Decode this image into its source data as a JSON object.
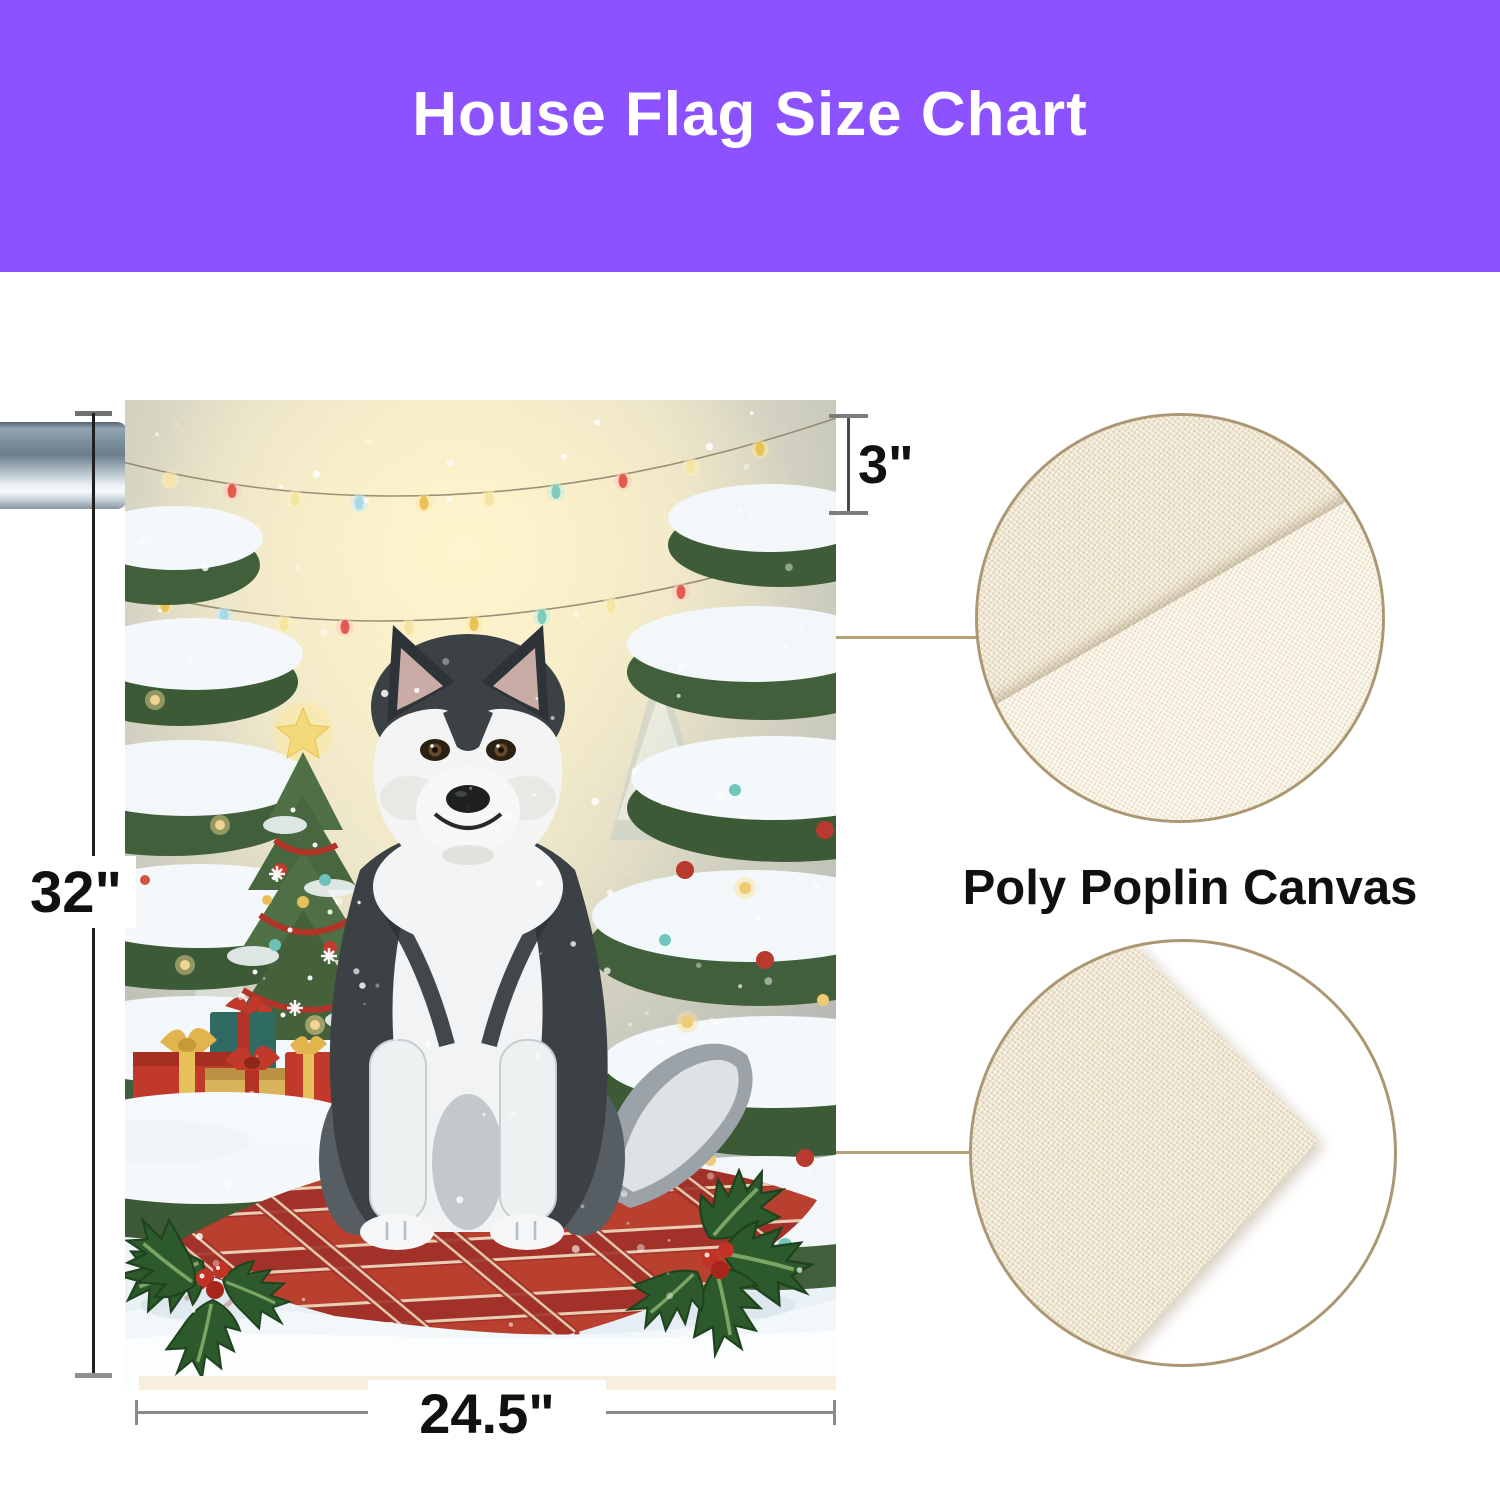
{
  "header": {
    "title": "House Flag Size Chart"
  },
  "dimensions": {
    "flag_height": "32\"",
    "flag_width": "24.5\"",
    "pole_sleeve": "3\""
  },
  "material": {
    "name": "Poly Poplin Canvas"
  },
  "colors": {
    "header_background": "#8c52ff",
    "header_text": "#ffffff",
    "dimension_text": "#111111",
    "dimension_line_gray": "#8a8a8a",
    "dimension_line_dark": "#1f1f1f",
    "callout_line": "#b2a076",
    "swatch_border": "#ab9873",
    "fabric_cream": "#f2e9d5",
    "blanket_red": "#b9402f",
    "tree_green": "#415f3a"
  }
}
